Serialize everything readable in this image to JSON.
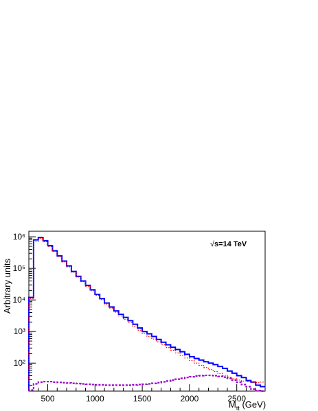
{
  "chart_data": {
    "type": "histogram",
    "xlabel_main": "M",
    "xlabel_sub": "tt",
    "xlabel_unit": " (GeV)",
    "ylabel": "Arbitrary units",
    "annotation": "s=14 TeV",
    "annotation_symbol": "√",
    "x_range": [
      300,
      2800
    ],
    "y_range": [
      13,
      1500000
    ],
    "y_scale": "log",
    "x_ticks": [
      500,
      1000,
      1500,
      2000,
      2500
    ],
    "x_tick_labels": [
      "500",
      "1000",
      "1500",
      "2000",
      "2500"
    ],
    "y_ticks": [
      100,
      1000,
      10000,
      100000,
      1000000
    ],
    "y_tick_labels": [
      "10²",
      "10³",
      "10⁴",
      "10⁵",
      "10⁶"
    ],
    "bin_edges": [
      300,
      350,
      400,
      450,
      500,
      550,
      600,
      650,
      700,
      750,
      800,
      850,
      900,
      950,
      1000,
      1050,
      1100,
      1150,
      1200,
      1250,
      1300,
      1350,
      1400,
      1450,
      1500,
      1550,
      1600,
      1650,
      1700,
      1750,
      1800,
      1850,
      1900,
      1950,
      2000,
      2050,
      2100,
      2150,
      2200,
      2250,
      2300,
      2350,
      2400,
      2450,
      2500,
      2550,
      2600,
      2650,
      2700,
      2750,
      2800
    ],
    "series": [
      {
        "style": "solid",
        "color": "#0000ff",
        "values": [
          12000,
          800000,
          950000,
          750000,
          520000,
          360000,
          250000,
          170000,
          120000,
          80000,
          56000,
          40000,
          29000,
          21000,
          15000,
          11000,
          8000,
          6000,
          4500,
          3500,
          2800,
          2200,
          1700,
          1300,
          1000,
          850,
          700,
          560,
          460,
          380,
          320,
          270,
          230,
          190,
          160,
          140,
          125,
          110,
          100,
          90,
          78,
          68,
          56,
          48,
          40,
          35,
          28,
          25,
          20,
          18
        ]
      },
      {
        "style": "dotted",
        "color": "#ff0000",
        "values": [
          11000,
          700000,
          880000,
          700000,
          490000,
          340000,
          235000,
          160000,
          112000,
          76000,
          53000,
          38000,
          27000,
          19500,
          14000,
          10200,
          7400,
          5500,
          4100,
          3100,
          2400,
          1900,
          1450,
          1100,
          850,
          700,
          580,
          470,
          380,
          310,
          255,
          210,
          175,
          145,
          120,
          100,
          85,
          72,
          62,
          54,
          47,
          41,
          36,
          32,
          29,
          27,
          26,
          25,
          24,
          25
        ]
      },
      {
        "style": "dashed",
        "color": "#9900cc",
        "values": [
          14,
          22,
          25,
          26,
          26,
          25,
          24.5,
          24,
          23.5,
          23,
          22.5,
          22,
          21.5,
          21,
          20.5,
          20.5,
          20,
          20,
          20,
          20,
          20,
          20,
          20.5,
          21,
          21.5,
          22,
          23,
          24,
          25.5,
          27,
          29,
          31,
          33,
          35,
          37,
          39,
          40,
          41,
          41,
          40,
          38,
          36,
          33,
          29,
          25,
          21,
          18,
          15,
          13.5,
          13
        ]
      }
    ]
  }
}
